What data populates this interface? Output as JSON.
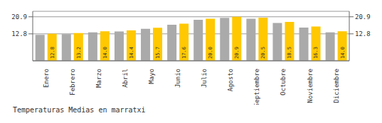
{
  "chart_data": {
    "type": "bar",
    "title": "Temperaturas Medias en marratxi",
    "categories": [
      "Enero",
      "Febrero",
      "Marzo",
      "Abril",
      "Mayo",
      "Junio",
      "Julio",
      "Agosto",
      "Septiembre",
      "Octubre",
      "Noviembre",
      "Diciembre"
    ],
    "series": [
      {
        "color": "#AAAAAA",
        "values": [
          12.3,
          12.7,
          13.5,
          13.9,
          15.2,
          17.1,
          19.5,
          20.4,
          20.0,
          18.0,
          15.8,
          13.5
        ]
      },
      {
        "color": "#FFC800",
        "values": [
          12.8,
          13.2,
          14.0,
          14.4,
          15.7,
          17.6,
          20.0,
          20.9,
          20.5,
          18.5,
          16.3,
          14.0
        ],
        "value_labels": [
          "12.8",
          "13.2",
          "14.0",
          "14.4",
          "15.7",
          "17.6",
          "20.0",
          "20.9",
          "20.5",
          "18.5",
          "16.3",
          "14.0"
        ],
        "data_labels": true
      }
    ],
    "ylim": [
      0,
      23.5
    ],
    "yticks": [
      12.8,
      20.9
    ],
    "y2lim": [
      0,
      23.5
    ],
    "y2ticks": [
      12.8,
      20.9
    ],
    "grid": true
  }
}
